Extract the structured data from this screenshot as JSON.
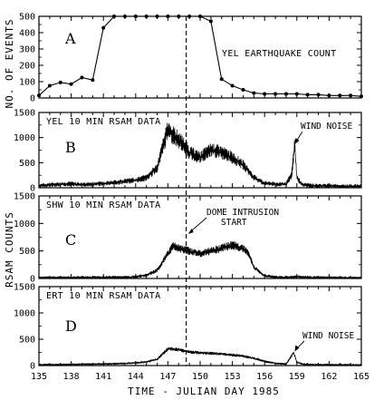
{
  "figure": {
    "xlabel": "TIME - JULIAN DAY 1985",
    "ylabel_top": "NO. OF EVENTS",
    "ylabel_rsam": "RSAM COUNTS",
    "xticks": [
      "135",
      "138",
      "141",
      "144",
      "147",
      "150",
      "153",
      "156",
      "159",
      "162",
      "165"
    ]
  },
  "chart_data": [
    {
      "type": "line",
      "panel_letter": "A",
      "title": "YEL EARTHQUAKE COUNT",
      "xlabel": "TIME - JULIAN DAY 1985",
      "ylabel": "NO. OF EVENTS",
      "xlim": [
        135,
        165
      ],
      "ylim": [
        0,
        500
      ],
      "yticks": [
        "0",
        "100",
        "200",
        "300",
        "400",
        "500"
      ],
      "markers": true,
      "x": [
        135,
        136,
        137,
        138,
        139,
        140,
        141,
        142,
        143,
        144,
        145,
        146,
        147,
        148,
        149,
        150,
        151,
        152,
        153,
        154,
        155,
        156,
        157,
        158,
        159,
        160,
        161,
        162,
        163,
        164,
        165
      ],
      "values": [
        15,
        75,
        95,
        85,
        125,
        110,
        430,
        500,
        500,
        500,
        500,
        500,
        500,
        500,
        500,
        500,
        470,
        115,
        75,
        50,
        30,
        25,
        25,
        25,
        25,
        20,
        20,
        15,
        15,
        15,
        10
      ],
      "dashed_line_x": 148.7
    },
    {
      "type": "line",
      "panel_letter": "B",
      "title": "YEL 10 MIN RSAM DATA",
      "xlim": [
        135,
        165
      ],
      "ylim": [
        0,
        1500
      ],
      "yticks": [
        "0",
        "500",
        "1000",
        "1500"
      ],
      "x": [
        135,
        136,
        137,
        138,
        139,
        140,
        141,
        142,
        143,
        144,
        145,
        146,
        146.5,
        147,
        147.5,
        148,
        148.5,
        149,
        149.5,
        150,
        151,
        152,
        153,
        154,
        155,
        156,
        157,
        158,
        158.5,
        158.8,
        159,
        159.5,
        160,
        161,
        162,
        163,
        164,
        165
      ],
      "values": [
        40,
        60,
        70,
        80,
        60,
        70,
        90,
        100,
        130,
        150,
        200,
        400,
        800,
        1150,
        1050,
        950,
        850,
        700,
        650,
        600,
        750,
        700,
        600,
        450,
        200,
        90,
        70,
        70,
        250,
        850,
        200,
        60,
        50,
        40,
        40,
        30,
        30,
        30
      ],
      "noise": 90,
      "annotations": [
        {
          "text": "WIND NOISE",
          "x": 158.8,
          "y": 850
        }
      ]
    },
    {
      "type": "line",
      "panel_letter": "C",
      "title": "SHW 10 MIN RSAM DATA",
      "xlim": [
        135,
        165
      ],
      "ylim": [
        0,
        1500
      ],
      "yticks": [
        "0",
        "500",
        "1000",
        "1500"
      ],
      "x": [
        135,
        137,
        139,
        141,
        143,
        144,
        145,
        146,
        147,
        147.5,
        148,
        149,
        150,
        151,
        152,
        153,
        154,
        154.5,
        155,
        156,
        157,
        158,
        159,
        160,
        162,
        165
      ],
      "values": [
        15,
        15,
        20,
        20,
        25,
        30,
        60,
        150,
        450,
        600,
        550,
        500,
        450,
        500,
        550,
        600,
        550,
        450,
        200,
        50,
        25,
        20,
        35,
        20,
        15,
        10
      ],
      "noise": 60,
      "annotations": [
        {
          "text": "DOME INTRUSION",
          "x": 148.7,
          "y": 850
        },
        {
          "text": "START",
          "x": 148.7,
          "y": 850
        }
      ]
    },
    {
      "type": "line",
      "panel_letter": "D",
      "title": "ERT 10 MIN RSAM DATA",
      "xlim": [
        135,
        165
      ],
      "ylim": [
        0,
        1500
      ],
      "yticks": [
        "0",
        "500",
        "1000",
        "1500"
      ],
      "x": [
        135,
        137,
        139,
        141,
        143,
        144,
        145,
        146,
        147,
        148,
        149,
        150,
        151,
        152,
        153,
        154,
        155,
        156,
        157,
        158,
        158.7,
        159,
        159.5,
        160,
        162,
        165
      ],
      "values": [
        15,
        20,
        25,
        30,
        40,
        50,
        70,
        120,
        320,
        300,
        260,
        240,
        230,
        220,
        200,
        180,
        140,
        80,
        40,
        30,
        250,
        60,
        30,
        20,
        15,
        10
      ],
      "noise": 40,
      "annotations": [
        {
          "text": "WIND NOISE",
          "x": 158.8,
          "y": 250
        }
      ]
    }
  ]
}
